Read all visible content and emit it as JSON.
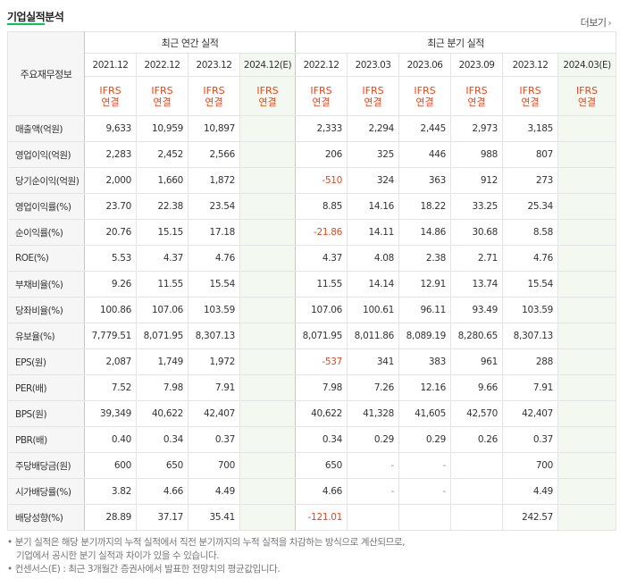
{
  "header": {
    "title": "기업실적분석",
    "more_label": "더보기",
    "more_icon": "chevron-right-icon"
  },
  "table": {
    "row_header_label": "주요재무정보",
    "groups": {
      "annual": "최근 연간 실적",
      "quarterly": "최근 분기 실적"
    },
    "periods": [
      "2021.12",
      "2022.12",
      "2023.12",
      "2024.12(E)",
      "2022.12",
      "2023.03",
      "2023.06",
      "2023.09",
      "2023.12",
      "2024.03(E)"
    ],
    "standards": [
      "IFRS 연결",
      "IFRS 연결",
      "IFRS 연결",
      "IFRS 연결",
      "IFRS 연결",
      "IFRS 연결",
      "IFRS 연결",
      "IFRS 연결",
      "IFRS 연결",
      "IFRS 연결"
    ],
    "rows": [
      {
        "label": "매출액(억원)",
        "values": [
          "9,633",
          "10,959",
          "10,897",
          "",
          "2,333",
          "2,294",
          "2,445",
          "2,973",
          "3,185",
          ""
        ]
      },
      {
        "label": "영업이익(억원)",
        "values": [
          "2,283",
          "2,452",
          "2,566",
          "",
          "206",
          "325",
          "446",
          "988",
          "807",
          ""
        ]
      },
      {
        "label": "당기순이익(억원)",
        "values": [
          "2,000",
          "1,660",
          "1,872",
          "",
          "-510",
          "324",
          "363",
          "912",
          "273",
          ""
        ]
      },
      {
        "label": "영업이익률(%)",
        "values": [
          "23.70",
          "22.38",
          "23.54",
          "",
          "8.85",
          "14.16",
          "18.22",
          "33.25",
          "25.34",
          ""
        ]
      },
      {
        "label": "순이익률(%)",
        "values": [
          "20.76",
          "15.15",
          "17.18",
          "",
          "-21.86",
          "14.11",
          "14.86",
          "30.68",
          "8.58",
          ""
        ]
      },
      {
        "label": "ROE(%)",
        "values": [
          "5.53",
          "4.37",
          "4.76",
          "",
          "4.37",
          "4.08",
          "2.38",
          "2.71",
          "4.76",
          ""
        ]
      },
      {
        "label": "부채비율(%)",
        "values": [
          "9.26",
          "11.55",
          "15.54",
          "",
          "11.55",
          "14.14",
          "12.91",
          "13.74",
          "15.54",
          ""
        ]
      },
      {
        "label": "당좌비율(%)",
        "values": [
          "100.86",
          "107.06",
          "103.59",
          "",
          "107.06",
          "100.61",
          "96.11",
          "93.49",
          "103.59",
          ""
        ]
      },
      {
        "label": "유보율(%)",
        "values": [
          "7,779.51",
          "8,071.95",
          "8,307.13",
          "",
          "8,071.95",
          "8,011.86",
          "8,089.19",
          "8,280.65",
          "8,307.13",
          ""
        ]
      },
      {
        "label": "EPS(원)",
        "values": [
          "2,087",
          "1,749",
          "1,972",
          "",
          "-537",
          "341",
          "383",
          "961",
          "288",
          ""
        ]
      },
      {
        "label": "PER(배)",
        "values": [
          "7.52",
          "7.98",
          "7.91",
          "",
          "7.98",
          "7.26",
          "12.16",
          "9.66",
          "7.91",
          ""
        ]
      },
      {
        "label": "BPS(원)",
        "values": [
          "39,349",
          "40,622",
          "42,407",
          "",
          "40,622",
          "41,328",
          "41,605",
          "42,570",
          "42,407",
          ""
        ]
      },
      {
        "label": "PBR(배)",
        "values": [
          "0.40",
          "0.34",
          "0.37",
          "",
          "0.34",
          "0.29",
          "0.29",
          "0.26",
          "0.37",
          ""
        ]
      },
      {
        "label": "주당배당금(원)",
        "values": [
          "600",
          "650",
          "700",
          "",
          "650",
          "-",
          "-",
          "",
          "700",
          ""
        ]
      },
      {
        "label": "시가배당률(%)",
        "values": [
          "3.82",
          "4.66",
          "4.49",
          "",
          "4.66",
          "-",
          "-",
          "",
          "4.49",
          ""
        ]
      },
      {
        "label": "배당성향(%)",
        "values": [
          "28.89",
          "37.17",
          "35.41",
          "",
          "-121.01",
          "",
          "",
          "",
          "242.57",
          ""
        ]
      }
    ]
  },
  "notes": [
    "분기 실적은 해당 분기까지의 누적 실적에서 직전 분기까지의 누적 실적을 차감하는 방식으로 계산되므로,",
    "기업에서 공시한 분기 실적과 차이가 있을 수 있습니다.",
    "컨센서스(E) : 최근 3개월간 증권사에서 발표한 전망치의 평균값입니다."
  ],
  "colors": {
    "accent_green": "#03c75a",
    "negative_red": "#e8461b",
    "estimate_bg": "#f3f9f0"
  }
}
